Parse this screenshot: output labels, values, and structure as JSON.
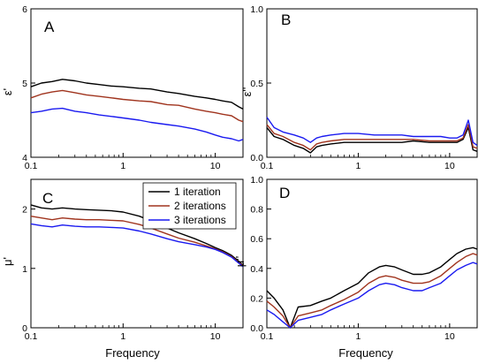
{
  "chart_data": [
    {
      "type": "line",
      "panel": "A",
      "ylabel": "ε'",
      "xscale": "log",
      "xlim": [
        0.1,
        20
      ],
      "ylim": [
        4,
        6
      ],
      "yticks": [
        4,
        5,
        6
      ],
      "ytick_labels": [
        "4",
        "5",
        "6"
      ],
      "xticks": [
        0.1,
        1,
        10
      ],
      "xtick_labels": [
        "0.1",
        "1",
        "10"
      ],
      "x": [
        0.1,
        0.13,
        0.17,
        0.22,
        0.3,
        0.4,
        0.55,
        0.75,
        1,
        1.5,
        2,
        3,
        4,
        6,
        8,
        10,
        12,
        15,
        18,
        20
      ],
      "series": [
        {
          "name": "1 iteration",
          "color": "#000000",
          "values": [
            4.95,
            5.0,
            5.02,
            5.05,
            5.03,
            5.0,
            4.98,
            4.96,
            4.95,
            4.93,
            4.92,
            4.88,
            4.86,
            4.82,
            4.8,
            4.78,
            4.76,
            4.74,
            4.68,
            4.65
          ]
        },
        {
          "name": "2 iterations",
          "color": "#a0341e",
          "values": [
            4.8,
            4.85,
            4.88,
            4.9,
            4.87,
            4.84,
            4.82,
            4.8,
            4.78,
            4.76,
            4.75,
            4.71,
            4.7,
            4.65,
            4.62,
            4.6,
            4.58,
            4.56,
            4.5,
            4.48
          ]
        },
        {
          "name": "3 iterations",
          "color": "#1a1af0",
          "values": [
            4.6,
            4.62,
            4.65,
            4.66,
            4.62,
            4.6,
            4.57,
            4.55,
            4.53,
            4.5,
            4.47,
            4.44,
            4.42,
            4.38,
            4.34,
            4.3,
            4.27,
            4.25,
            4.22,
            4.24
          ]
        }
      ]
    },
    {
      "type": "line",
      "panel": "B",
      "ylabel": "ε''",
      "xscale": "log",
      "xlim": [
        0.1,
        20
      ],
      "ylim": [
        0,
        1
      ],
      "yticks": [
        0,
        0.5,
        1
      ],
      "ytick_labels": [
        "0.0",
        "0.5",
        "1.0"
      ],
      "xticks": [
        0.1,
        1,
        10
      ],
      "xtick_labels": [
        "0.1",
        "1",
        "10"
      ],
      "x": [
        0.1,
        0.12,
        0.15,
        0.2,
        0.25,
        0.3,
        0.35,
        0.4,
        0.5,
        0.7,
        1,
        1.5,
        2,
        3,
        4,
        6,
        8,
        10,
        12,
        14,
        16,
        18,
        20
      ],
      "series": [
        {
          "name": "1 iteration",
          "color": "#000000",
          "values": [
            0.2,
            0.14,
            0.12,
            0.08,
            0.06,
            0.03,
            0.07,
            0.08,
            0.09,
            0.1,
            0.1,
            0.1,
            0.1,
            0.1,
            0.11,
            0.1,
            0.1,
            0.1,
            0.1,
            0.12,
            0.2,
            0.05,
            0.04
          ]
        },
        {
          "name": "2 iterations",
          "color": "#a0341e",
          "values": [
            0.22,
            0.16,
            0.14,
            0.1,
            0.08,
            0.05,
            0.09,
            0.1,
            0.11,
            0.12,
            0.12,
            0.12,
            0.12,
            0.12,
            0.12,
            0.11,
            0.11,
            0.11,
            0.11,
            0.13,
            0.22,
            0.07,
            0.06
          ]
        },
        {
          "name": "3 iterations",
          "color": "#1a1af0",
          "values": [
            0.27,
            0.2,
            0.17,
            0.15,
            0.13,
            0.1,
            0.13,
            0.14,
            0.15,
            0.16,
            0.16,
            0.15,
            0.15,
            0.15,
            0.14,
            0.14,
            0.14,
            0.13,
            0.13,
            0.15,
            0.25,
            0.1,
            0.08
          ]
        }
      ]
    },
    {
      "type": "line",
      "panel": "C",
      "ylabel": "μ'",
      "xscale": "log",
      "xlim": [
        0.1,
        20
      ],
      "ylim": [
        0,
        2.5
      ],
      "yticks": [
        0,
        1,
        2
      ],
      "ytick_labels": [
        "0",
        "1",
        "2"
      ],
      "xticks": [
        0.1,
        1,
        10
      ],
      "xtick_labels": [
        "0.1",
        "1",
        "10"
      ],
      "x": [
        0.1,
        0.13,
        0.17,
        0.22,
        0.3,
        0.4,
        0.55,
        0.75,
        1,
        1.5,
        2,
        3,
        4,
        6,
        8,
        10,
        12,
        15,
        18,
        20
      ],
      "series": [
        {
          "name": "1 iteration",
          "color": "#000000",
          "values": [
            2.07,
            2.02,
            2.0,
            2.02,
            2.0,
            1.99,
            1.98,
            1.97,
            1.95,
            1.88,
            1.8,
            1.68,
            1.6,
            1.5,
            1.42,
            1.35,
            1.3,
            1.22,
            1.12,
            1.05
          ]
        },
        {
          "name": "2 iterations",
          "color": "#a0341e",
          "values": [
            1.88,
            1.85,
            1.82,
            1.85,
            1.83,
            1.82,
            1.82,
            1.81,
            1.8,
            1.74,
            1.68,
            1.58,
            1.51,
            1.44,
            1.38,
            1.33,
            1.28,
            1.2,
            1.1,
            1.04
          ]
        },
        {
          "name": "3 iterations",
          "color": "#1a1af0",
          "values": [
            1.75,
            1.72,
            1.7,
            1.73,
            1.71,
            1.7,
            1.7,
            1.69,
            1.68,
            1.63,
            1.58,
            1.5,
            1.45,
            1.4,
            1.36,
            1.32,
            1.27,
            1.19,
            1.09,
            1.03
          ]
        }
      ]
    },
    {
      "type": "line",
      "panel": "D",
      "ylabel": "μ''",
      "xlabel": "Frequency",
      "xscale": "log",
      "xlim": [
        0.1,
        20
      ],
      "ylim": [
        0,
        1
      ],
      "yticks": [
        0,
        0.2,
        0.4,
        0.6,
        0.8,
        1
      ],
      "ytick_labels": [
        "0.0",
        "0.2",
        "0.4",
        "0.6",
        "0.8",
        "1.0"
      ],
      "xticks": [
        0.1,
        1,
        10
      ],
      "xtick_labels": [
        "0.1",
        "1",
        "10"
      ],
      "x": [
        0.1,
        0.12,
        0.15,
        0.18,
        0.22,
        0.3,
        0.4,
        0.5,
        0.7,
        1,
        1.3,
        1.7,
        2,
        2.5,
        3,
        4,
        5,
        6,
        8,
        10,
        12,
        15,
        18,
        20
      ],
      "series": [
        {
          "name": "1 iteration",
          "color": "#000000",
          "values": [
            0.25,
            0.2,
            0.12,
            0.0,
            0.14,
            0.15,
            0.18,
            0.2,
            0.25,
            0.3,
            0.37,
            0.41,
            0.42,
            0.41,
            0.39,
            0.36,
            0.36,
            0.37,
            0.41,
            0.46,
            0.5,
            0.53,
            0.54,
            0.53
          ]
        },
        {
          "name": "2 iterations",
          "color": "#a0341e",
          "values": [
            0.18,
            0.14,
            0.08,
            0.0,
            0.08,
            0.1,
            0.12,
            0.15,
            0.19,
            0.24,
            0.3,
            0.34,
            0.35,
            0.34,
            0.32,
            0.3,
            0.3,
            0.31,
            0.35,
            0.4,
            0.44,
            0.48,
            0.5,
            0.49
          ]
        },
        {
          "name": "3 iterations",
          "color": "#1a1af0",
          "values": [
            0.12,
            0.09,
            0.04,
            0.0,
            0.05,
            0.07,
            0.09,
            0.12,
            0.16,
            0.2,
            0.25,
            0.29,
            0.3,
            0.29,
            0.27,
            0.25,
            0.25,
            0.27,
            0.3,
            0.35,
            0.39,
            0.42,
            0.44,
            0.43
          ]
        }
      ]
    }
  ],
  "labels": {
    "panel_a": "A",
    "panel_b": "B",
    "panel_c": "C",
    "panel_d": "D",
    "ylabel_a": "ε'",
    "ylabel_b": "ε''",
    "ylabel_c": "μ'",
    "ylabel_d": "μ''",
    "xlabel_c": "Frequency",
    "xlabel_d": "Frequency"
  },
  "legend": {
    "entries": [
      "1 iteration",
      "2 iterations",
      "3 iterations"
    ],
    "colors": [
      "#000000",
      "#a0341e",
      "#1a1af0"
    ]
  }
}
